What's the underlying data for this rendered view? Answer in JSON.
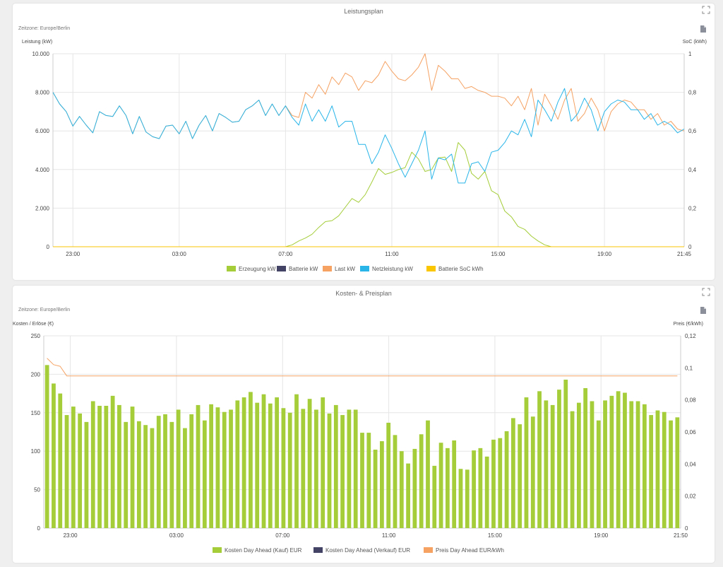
{
  "power_card": {
    "title": "Leistungsplan",
    "timezone": "Zeitzone: Europe/Berlin"
  },
  "cost_card": {
    "title": "Kosten- & Preisplan",
    "timezone": "Zeitzone: Europe/Berlin"
  },
  "icons": {
    "expand": "fullscreen-icon",
    "export": "document-export-icon"
  },
  "chart_data": [
    {
      "type": "line",
      "title": "Leistungsplan",
      "ylabel": "Leistung (kW)",
      "y2label": "SoC (kWh)",
      "ylim": [
        0,
        10000
      ],
      "y2lim": [
        0,
        1
      ],
      "yticks": [
        "0",
        "2.000",
        "4.000",
        "6.000",
        "8.000",
        "10.000"
      ],
      "y2ticks": [
        "0",
        "0,2",
        "0,4",
        "0,6",
        "0,8",
        "1"
      ],
      "x_index_range": [
        0,
        95
      ],
      "xtick_labels": [
        {
          "i": 3,
          "label": "23:00"
        },
        {
          "i": 19,
          "label": "03:00"
        },
        {
          "i": 35,
          "label": "07:00"
        },
        {
          "i": 51,
          "label": "11:00"
        },
        {
          "i": 67,
          "label": "15:00"
        },
        {
          "i": 83,
          "label": "19:00"
        },
        {
          "i": 95,
          "label": "21:45"
        }
      ],
      "grid": true,
      "legend_position": "bottom",
      "series": [
        {
          "name": "Erzeugung kW",
          "color": "#a4cd39",
          "axis": "left",
          "values": [
            0,
            0,
            0,
            0,
            0,
            0,
            0,
            0,
            0,
            0,
            0,
            0,
            0,
            0,
            0,
            0,
            0,
            0,
            0,
            0,
            0,
            0,
            0,
            0,
            0,
            0,
            0,
            0,
            0,
            0,
            0,
            0,
            0,
            0,
            0,
            0,
            100,
            300,
            450,
            650,
            1000,
            1300,
            1350,
            1600,
            2050,
            2500,
            2300,
            2700,
            3350,
            4050,
            3750,
            3850,
            4000,
            4100,
            4900,
            4550,
            3900,
            4000,
            4600,
            4650,
            3900,
            5400,
            5000,
            3800,
            3500,
            3900,
            2900,
            2700,
            1850,
            1550,
            1050,
            900,
            550,
            300,
            100,
            0,
            0,
            0,
            0,
            0,
            0,
            0,
            0,
            0,
            0,
            0,
            0,
            0,
            0,
            0,
            0,
            0,
            0,
            0,
            0,
            0
          ]
        },
        {
          "name": "Batterie kW",
          "color": "#434365",
          "axis": "left",
          "values": [
            0,
            0,
            0,
            0,
            0,
            0,
            0,
            0,
            0,
            0,
            0,
            0,
            0,
            0,
            0,
            0,
            0,
            0,
            0,
            0,
            0,
            0,
            0,
            0,
            0,
            0,
            0,
            0,
            0,
            0,
            0,
            0,
            0,
            0,
            0,
            0,
            0,
            0,
            0,
            0,
            0,
            0,
            0,
            0,
            0,
            0,
            0,
            0,
            0,
            0,
            0,
            0,
            0,
            0,
            0,
            0,
            0,
            0,
            0,
            0,
            0,
            0,
            0,
            0,
            0,
            0,
            0,
            0,
            0,
            0,
            0,
            0,
            0,
            0,
            0,
            0,
            0,
            0,
            0,
            0,
            0,
            0,
            0,
            0,
            0,
            0,
            0,
            0,
            0,
            0,
            0,
            0,
            0,
            0,
            0,
            0
          ]
        },
        {
          "name": "Last kW",
          "color": "#f5a263",
          "axis": "left",
          "values": [
            8000,
            7400,
            7000,
            6250,
            6750,
            6300,
            5900,
            7000,
            6800,
            6750,
            7300,
            6800,
            5850,
            6750,
            5950,
            5700,
            5600,
            6250,
            6300,
            5850,
            6500,
            5600,
            6300,
            6800,
            6000,
            6900,
            6700,
            6450,
            6500,
            7100,
            7300,
            7600,
            6800,
            7400,
            6800,
            7300,
            6800,
            6700,
            8000,
            7700,
            8400,
            7900,
            8800,
            8400,
            9000,
            8800,
            8100,
            8600,
            8500,
            8900,
            9600,
            9100,
            8700,
            8600,
            8900,
            9300,
            10000,
            8100,
            9400,
            9100,
            8700,
            8700,
            8200,
            8300,
            8100,
            8000,
            7800,
            7800,
            7700,
            7300,
            7800,
            7100,
            8200,
            6300,
            7900,
            7300,
            6600,
            7600,
            8200,
            6500,
            6900,
            7700,
            7100,
            6000,
            7000,
            7400,
            7600,
            7500,
            7100,
            7100,
            6600,
            6900,
            6300,
            6500,
            6100,
            6000
          ]
        },
        {
          "name": "Netzleistung kW",
          "color": "#29b5e8",
          "axis": "left",
          "values": [
            8000,
            7400,
            7000,
            6250,
            6750,
            6300,
            5900,
            7000,
            6800,
            6750,
            7300,
            6800,
            5850,
            6750,
            5950,
            5700,
            5600,
            6250,
            6300,
            5850,
            6500,
            5600,
            6300,
            6800,
            6000,
            6900,
            6700,
            6450,
            6500,
            7100,
            7300,
            7600,
            6800,
            7400,
            6800,
            7300,
            6700,
            6300,
            7400,
            6500,
            7100,
            6500,
            7300,
            6200,
            6500,
            6500,
            5300,
            5300,
            4300,
            4900,
            5800,
            5100,
            4300,
            3600,
            4300,
            5000,
            6000,
            3500,
            4600,
            4500,
            4800,
            3300,
            3300,
            4300,
            4400,
            3900,
            4900,
            5000,
            5400,
            6000,
            5800,
            6600,
            5700,
            7600,
            7100,
            6500,
            7500,
            8200,
            6500,
            6900,
            7700,
            7100,
            6000,
            7000,
            7400,
            7600,
            7500,
            7100,
            7100,
            6600,
            6900,
            6300,
            6500,
            6300,
            5900,
            6100
          ]
        },
        {
          "name": "Batterie SoC kWh",
          "color": "#f9c600",
          "axis": "right",
          "values": [
            0,
            0,
            0,
            0,
            0,
            0,
            0,
            0,
            0,
            0,
            0,
            0,
            0,
            0,
            0,
            0,
            0,
            0,
            0,
            0,
            0,
            0,
            0,
            0,
            0,
            0,
            0,
            0,
            0,
            0,
            0,
            0,
            0,
            0,
            0,
            0,
            0,
            0,
            0,
            0,
            0,
            0,
            0,
            0,
            0,
            0,
            0,
            0,
            0,
            0,
            0,
            0,
            0,
            0,
            0,
            0,
            0,
            0,
            0,
            0,
            0,
            0,
            0,
            0,
            0,
            0,
            0,
            0,
            0,
            0,
            0,
            0,
            0,
            0,
            0,
            0,
            0,
            0,
            0,
            0,
            0,
            0,
            0,
            0,
            0,
            0,
            0,
            0,
            0,
            0,
            0,
            0,
            0,
            0,
            0,
            0
          ]
        }
      ]
    },
    {
      "type": "bar",
      "title": "Kosten- & Preisplan",
      "ylabel": "Kosten / Erlöse (€)",
      "y2label": "Preis (€/kWh)",
      "ylim": [
        0,
        250
      ],
      "y2lim": [
        0,
        0.12
      ],
      "yticks": [
        "0",
        "50",
        "100",
        "150",
        "200",
        "250"
      ],
      "y2ticks": [
        "0",
        "0,02",
        "0,04",
        "0,06",
        "0,08",
        "0,1",
        "0,12"
      ],
      "x_index_range": [
        0,
        96
      ],
      "xtick_labels": [
        {
          "i": 4,
          "label": "23:00"
        },
        {
          "i": 20,
          "label": "03:00"
        },
        {
          "i": 36,
          "label": "07:00"
        },
        {
          "i": 52,
          "label": "11:00"
        },
        {
          "i": 68,
          "label": "15:00"
        },
        {
          "i": 84,
          "label": "19:00"
        },
        {
          "i": 96,
          "label": "21:50"
        }
      ],
      "grid": true,
      "legend_position": "bottom",
      "series": [
        {
          "name": "Kosten Day Ahead (Kauf) EUR",
          "color": "#a4cd39",
          "axis": "left",
          "values": [
            212,
            188,
            175,
            147,
            158,
            149,
            138,
            165,
            159,
            159,
            172,
            160,
            138,
            158,
            139,
            134,
            130,
            146,
            148,
            138,
            154,
            130,
            148,
            160,
            140,
            161,
            157,
            151,
            154,
            166,
            170,
            177,
            163,
            174,
            162,
            170,
            156,
            150,
            174,
            155,
            168,
            154,
            170,
            149,
            160,
            147,
            154,
            154,
            124,
            124,
            102,
            113,
            137,
            121,
            100,
            84,
            103,
            122,
            140,
            81,
            111,
            104,
            114,
            77,
            76,
            101,
            104,
            93,
            115,
            117,
            126,
            143,
            135,
            170,
            145,
            178,
            166,
            160,
            180,
            193,
            152,
            163,
            182,
            165,
            140,
            166,
            172,
            178,
            176,
            165,
            165,
            161,
            147,
            153,
            151,
            140,
            144
          ]
        },
        {
          "name": "Kosten Day Ahead (Verkauf) EUR",
          "color": "#434365",
          "axis": "left",
          "values": []
        },
        {
          "name": "Preis Day Ahead EUR/kWh",
          "color": "#f5a263",
          "axis": "right",
          "type": "line",
          "values": [
            0.106,
            0.102,
            0.101,
            0.095,
            0.095,
            0.095,
            0.095,
            0.095,
            0.095,
            0.095,
            0.095,
            0.095,
            0.095,
            0.095,
            0.095,
            0.095,
            0.095,
            0.095,
            0.095,
            0.095,
            0.095,
            0.095,
            0.095,
            0.095,
            0.095,
            0.095,
            0.095,
            0.095,
            0.095,
            0.095,
            0.095,
            0.095,
            0.095,
            0.095,
            0.095,
            0.095,
            0.095,
            0.095,
            0.095,
            0.095,
            0.095,
            0.095,
            0.095,
            0.095,
            0.095,
            0.095,
            0.095,
            0.095,
            0.095,
            0.095,
            0.095,
            0.095,
            0.095,
            0.095,
            0.095,
            0.095,
            0.095,
            0.095,
            0.095,
            0.095,
            0.095,
            0.095,
            0.095,
            0.095,
            0.095,
            0.095,
            0.095,
            0.095,
            0.095,
            0.095,
            0.095,
            0.095,
            0.095,
            0.095,
            0.095,
            0.095,
            0.095,
            0.095,
            0.095,
            0.095,
            0.095,
            0.095,
            0.095,
            0.095,
            0.095,
            0.095,
            0.095,
            0.095,
            0.095,
            0.095,
            0.095,
            0.095,
            0.095,
            0.095,
            0.095,
            0.095,
            0.095
          ]
        }
      ]
    }
  ]
}
